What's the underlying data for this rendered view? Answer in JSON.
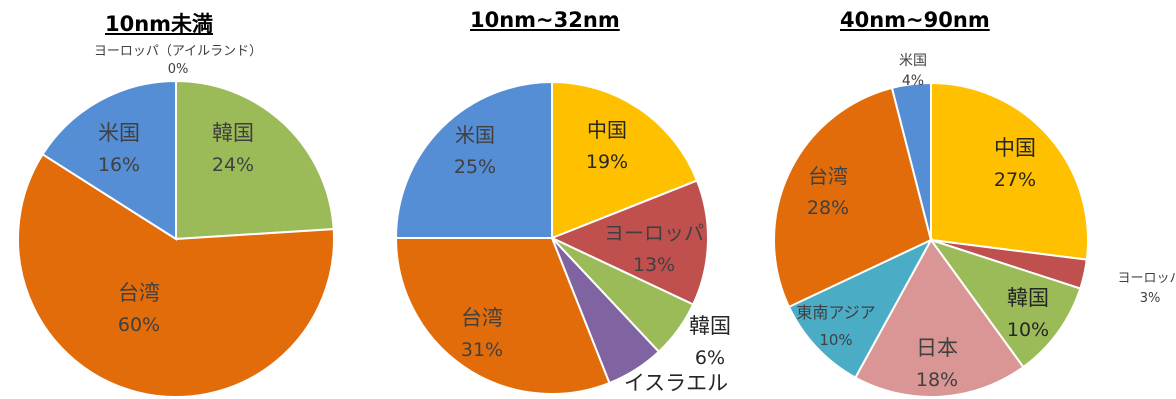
{
  "chart_data": [
    {
      "type": "pie",
      "title": "10nm未満",
      "slices": [
        {
          "label": "ヨーロッパ（アイルランド）",
          "value": 0,
          "display": "0%",
          "color": "#4472c4"
        },
        {
          "label": "韓国",
          "value": 24,
          "display": "24%",
          "color": "#9bbb59"
        },
        {
          "label": "台湾",
          "value": 60,
          "display": "60%",
          "color": "#e36c0a"
        },
        {
          "label": "米国",
          "value": 16,
          "display": "16%",
          "color": "#558ed5"
        }
      ]
    },
    {
      "type": "pie",
      "title": "10nm~32nm",
      "slices": [
        {
          "label": "中国",
          "value": 19,
          "display": "19%",
          "color": "#ffc000"
        },
        {
          "label": "ヨーロッパ",
          "value": 13,
          "display": "13%",
          "color": "#c0504d"
        },
        {
          "label": "韓国",
          "value": 6,
          "display": "6%",
          "color": "#9bbb59"
        },
        {
          "label": "イスラエル",
          "value": 6,
          "display": "",
          "color": "#8064a2"
        },
        {
          "label": "台湾",
          "value": 31,
          "display": "31%",
          "color": "#e36c0a"
        },
        {
          "label": "米国",
          "value": 25,
          "display": "25%",
          "color": "#558ed5"
        }
      ]
    },
    {
      "type": "pie",
      "title": "40nm~90nm",
      "slices": [
        {
          "label": "中国",
          "value": 27,
          "display": "27%",
          "color": "#ffc000"
        },
        {
          "label": "ヨーロッパ",
          "value": 3,
          "display": "3%",
          "color": "#c0504d"
        },
        {
          "label": "韓国",
          "value": 10,
          "display": "10%",
          "color": "#9bbb59"
        },
        {
          "label": "日本",
          "value": 18,
          "display": "18%",
          "color": "#d99694"
        },
        {
          "label": "東南アジア",
          "value": 10,
          "display": "10%",
          "color": "#4bacc6"
        },
        {
          "label": "台湾",
          "value": 28,
          "display": "28%",
          "color": "#e36c0a"
        },
        {
          "label": "米国",
          "value": 4,
          "display": "4%",
          "color": "#558ed5"
        }
      ]
    }
  ]
}
